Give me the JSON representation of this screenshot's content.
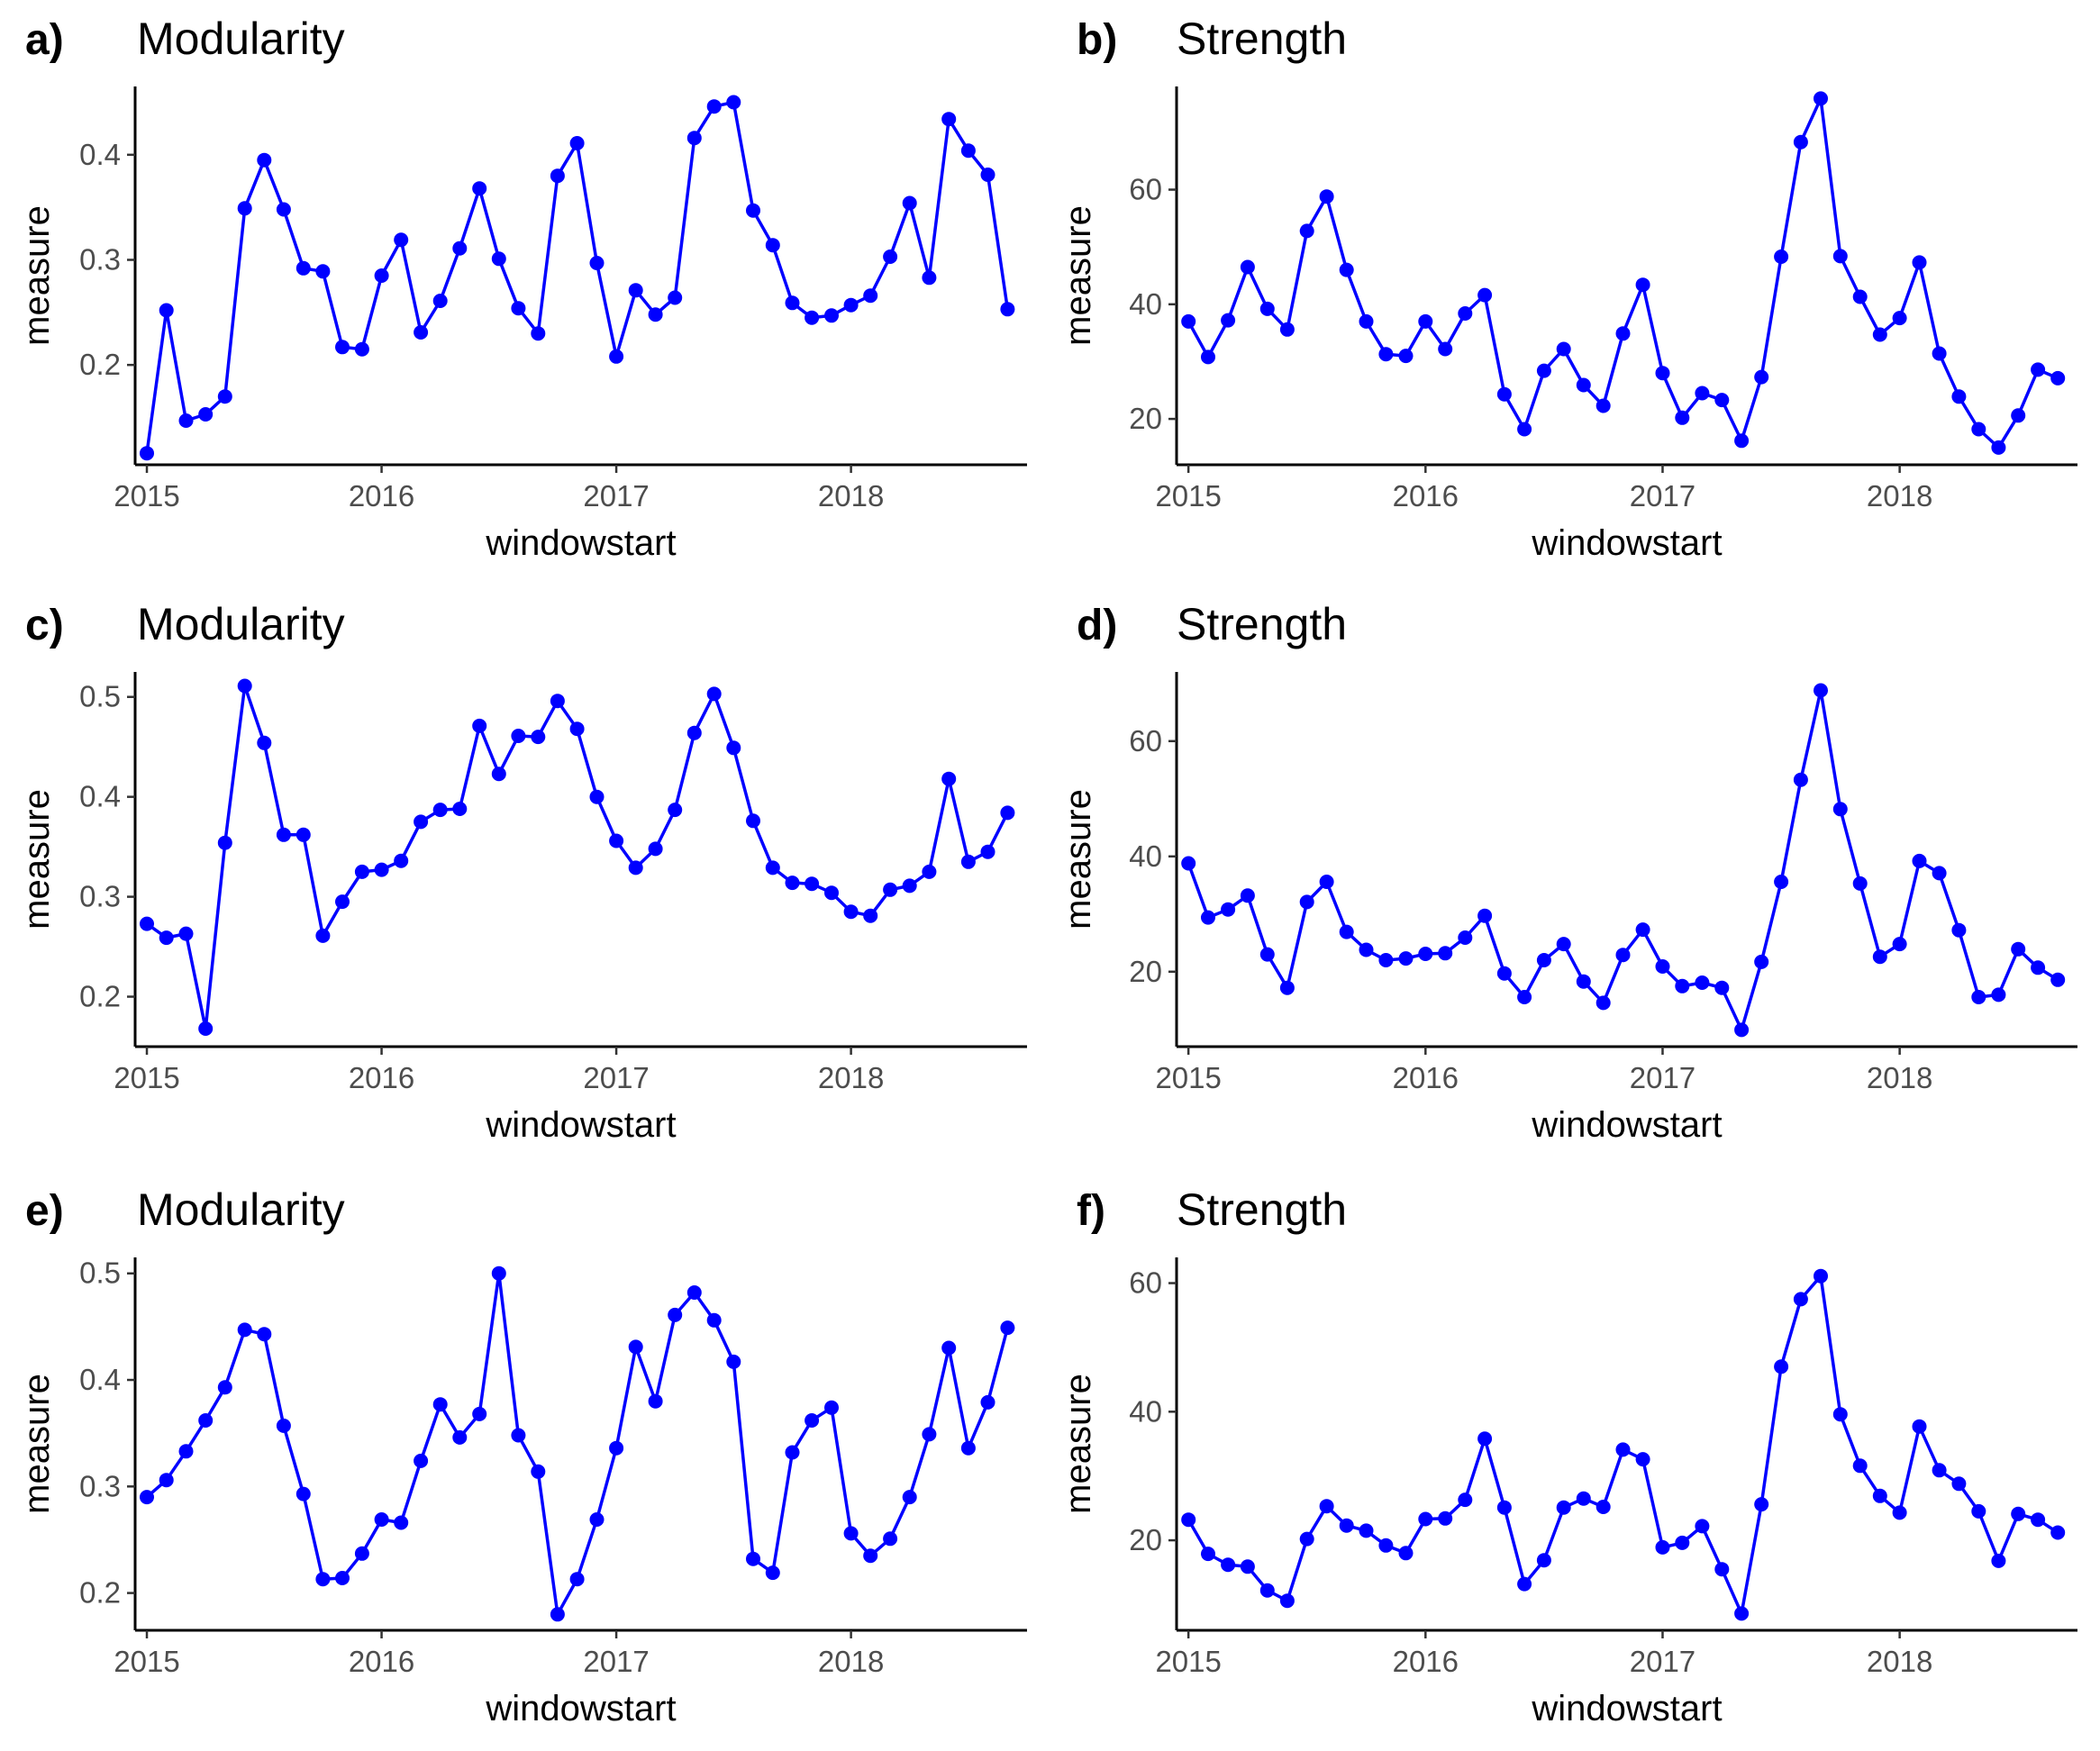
{
  "colors": {
    "series": "#0000ff",
    "axis": "#000000",
    "tick_label": "#4d4d4d"
  },
  "chart_data": [
    {
      "type": "line",
      "panel_label": "a)",
      "title": "Modularity",
      "xlabel": "windowstart",
      "ylabel": "measure",
      "x_ticks": [
        2015,
        2016,
        2017,
        2018
      ],
      "y_ticks": [
        0.2,
        0.3,
        0.4
      ],
      "xlim": [
        2014.95,
        2018.75
      ],
      "ylim": [
        0.105,
        0.465
      ],
      "grid": false,
      "series": [
        {
          "x": [
            2015.0,
            2015.083,
            2015.167,
            2015.25,
            2015.333,
            2015.417,
            2015.5,
            2015.583,
            2015.667,
            2015.75,
            2015.833,
            2015.917,
            2016.0,
            2016.083,
            2016.167,
            2016.25,
            2016.333,
            2016.417,
            2016.5,
            2016.583,
            2016.667,
            2016.75,
            2016.833,
            2016.917,
            2017.0,
            2017.083,
            2017.167,
            2017.25,
            2017.333,
            2017.417,
            2017.5,
            2017.583,
            2017.667,
            2017.75,
            2017.833,
            2017.917,
            2018.0,
            2018.083,
            2018.167,
            2018.25,
            2018.333,
            2018.417,
            2018.5,
            2018.583,
            2018.667
          ],
          "values": [
            0.116,
            0.252,
            0.147,
            0.153,
            0.17,
            0.349,
            0.395,
            0.348,
            0.292,
            0.289,
            0.217,
            0.215,
            0.285,
            0.319,
            0.231,
            0.261,
            0.311,
            0.368,
            0.301,
            0.254,
            0.23,
            0.38,
            0.411,
            0.297,
            0.208,
            0.271,
            0.248,
            0.264,
            0.416,
            0.446,
            0.45,
            0.347,
            0.314,
            0.259,
            0.245,
            0.247,
            0.257,
            0.266,
            0.303,
            0.354,
            0.283,
            0.434,
            0.404,
            0.381,
            0.253
          ]
        }
      ]
    },
    {
      "type": "line",
      "panel_label": "b)",
      "title": "Strength",
      "xlabel": "windowstart",
      "ylabel": "measure",
      "x_ticks": [
        2015,
        2016,
        2017,
        2018
      ],
      "y_ticks": [
        20,
        40,
        60
      ],
      "xlim": [
        2014.95,
        2018.75
      ],
      "ylim": [
        12,
        78
      ],
      "grid": false,
      "series": [
        {
          "x": [
            2015.0,
            2015.083,
            2015.167,
            2015.25,
            2015.333,
            2015.417,
            2015.5,
            2015.583,
            2015.667,
            2015.75,
            2015.833,
            2015.917,
            2016.0,
            2016.083,
            2016.167,
            2016.25,
            2016.333,
            2016.417,
            2016.5,
            2016.583,
            2016.667,
            2016.75,
            2016.833,
            2016.917,
            2017.0,
            2017.083,
            2017.167,
            2017.25,
            2017.333,
            2017.417,
            2017.5,
            2017.583,
            2017.667,
            2017.75,
            2017.833,
            2017.917,
            2018.0,
            2018.083,
            2018.167,
            2018.25,
            2018.333,
            2018.417,
            2018.5,
            2018.583,
            2018.667
          ],
          "values": [
            37.0,
            30.8,
            37.2,
            46.5,
            39.2,
            35.6,
            52.8,
            58.8,
            46.0,
            37.0,
            31.3,
            31.0,
            37.0,
            32.2,
            38.4,
            41.6,
            24.3,
            18.2,
            28.4,
            32.2,
            25.9,
            22.3,
            34.9,
            43.4,
            28.0,
            20.2,
            24.5,
            23.3,
            16.2,
            27.3,
            48.3,
            68.3,
            75.9,
            48.4,
            41.3,
            34.7,
            37.6,
            47.3,
            31.4,
            23.9,
            18.2,
            15.0,
            20.6,
            28.6,
            27.1
          ]
        }
      ]
    },
    {
      "type": "line",
      "panel_label": "c)",
      "title": "Modularity",
      "xlabel": "windowstart",
      "ylabel": "measure",
      "x_ticks": [
        2015,
        2016,
        2017,
        2018
      ],
      "y_ticks": [
        0.2,
        0.3,
        0.4,
        0.5
      ],
      "xlim": [
        2014.95,
        2018.75
      ],
      "ylim": [
        0.15,
        0.525
      ],
      "grid": false,
      "series": [
        {
          "x": [
            2015.0,
            2015.083,
            2015.167,
            2015.25,
            2015.333,
            2015.417,
            2015.5,
            2015.583,
            2015.667,
            2015.75,
            2015.833,
            2015.917,
            2016.0,
            2016.083,
            2016.167,
            2016.25,
            2016.333,
            2016.417,
            2016.5,
            2016.583,
            2016.667,
            2016.75,
            2016.833,
            2016.917,
            2017.0,
            2017.083,
            2017.167,
            2017.25,
            2017.333,
            2017.417,
            2017.5,
            2017.583,
            2017.667,
            2017.75,
            2017.833,
            2017.917,
            2018.0,
            2018.083,
            2018.167,
            2018.25,
            2018.333,
            2018.417,
            2018.5,
            2018.583,
            2018.667
          ],
          "values": [
            0.273,
            0.259,
            0.263,
            0.168,
            0.354,
            0.511,
            0.454,
            0.362,
            0.362,
            0.261,
            0.295,
            0.325,
            0.327,
            0.336,
            0.375,
            0.387,
            0.388,
            0.471,
            0.423,
            0.461,
            0.46,
            0.496,
            0.468,
            0.4,
            0.356,
            0.329,
            0.348,
            0.387,
            0.464,
            0.503,
            0.449,
            0.376,
            0.329,
            0.314,
            0.313,
            0.304,
            0.285,
            0.281,
            0.307,
            0.311,
            0.325,
            0.418,
            0.335,
            0.345,
            0.384
          ]
        }
      ]
    },
    {
      "type": "line",
      "panel_label": "d)",
      "title": "Strength",
      "xlabel": "windowstart",
      "ylabel": "measure",
      "x_ticks": [
        2015,
        2016,
        2017,
        2018
      ],
      "y_ticks": [
        20,
        40,
        60
      ],
      "xlim": [
        2014.95,
        2018.75
      ],
      "ylim": [
        7,
        72
      ],
      "grid": false,
      "series": [
        {
          "x": [
            2015.0,
            2015.083,
            2015.167,
            2015.25,
            2015.333,
            2015.417,
            2015.5,
            2015.583,
            2015.667,
            2015.75,
            2015.833,
            2015.917,
            2016.0,
            2016.083,
            2016.167,
            2016.25,
            2016.333,
            2016.417,
            2016.5,
            2016.583,
            2016.667,
            2016.75,
            2016.833,
            2016.917,
            2017.0,
            2017.083,
            2017.167,
            2017.25,
            2017.333,
            2017.417,
            2017.5,
            2017.583,
            2017.667,
            2017.75,
            2017.833,
            2017.917,
            2018.0,
            2018.083,
            2018.167,
            2018.25,
            2018.333,
            2018.417,
            2018.5,
            2018.583,
            2018.667
          ],
          "values": [
            38.8,
            29.4,
            30.8,
            33.2,
            23.0,
            17.2,
            32.1,
            35.6,
            26.9,
            23.8,
            22.0,
            22.3,
            23.1,
            23.2,
            25.9,
            29.7,
            19.7,
            15.6,
            22.0,
            24.8,
            18.3,
            14.6,
            22.9,
            27.3,
            20.9,
            17.5,
            18.1,
            17.2,
            9.9,
            21.7,
            35.6,
            53.3,
            68.8,
            48.2,
            35.3,
            22.6,
            24.8,
            39.2,
            37.1,
            27.2,
            15.6,
            16.0,
            23.9,
            20.7,
            18.6
          ]
        }
      ]
    },
    {
      "type": "line",
      "panel_label": "e)",
      "title": "Modularity",
      "xlabel": "windowstart",
      "ylabel": "measure",
      "x_ticks": [
        2015,
        2016,
        2017,
        2018
      ],
      "y_ticks": [
        0.2,
        0.3,
        0.4,
        0.5
      ],
      "xlim": [
        2014.95,
        2018.75
      ],
      "ylim": [
        0.165,
        0.515
      ],
      "grid": false,
      "series": [
        {
          "x": [
            2015.0,
            2015.083,
            2015.167,
            2015.25,
            2015.333,
            2015.417,
            2015.5,
            2015.583,
            2015.667,
            2015.75,
            2015.833,
            2015.917,
            2016.0,
            2016.083,
            2016.167,
            2016.25,
            2016.333,
            2016.417,
            2016.5,
            2016.583,
            2016.667,
            2016.75,
            2016.833,
            2016.917,
            2017.0,
            2017.083,
            2017.167,
            2017.25,
            2017.333,
            2017.417,
            2017.5,
            2017.583,
            2017.667,
            2017.75,
            2017.833,
            2017.917,
            2018.0,
            2018.083,
            2018.167,
            2018.25,
            2018.333,
            2018.417,
            2018.5,
            2018.583,
            2018.667
          ],
          "values": [
            0.29,
            0.306,
            0.333,
            0.362,
            0.393,
            0.447,
            0.443,
            0.357,
            0.293,
            0.213,
            0.214,
            0.237,
            0.269,
            0.266,
            0.324,
            0.377,
            0.346,
            0.368,
            0.5,
            0.348,
            0.314,
            0.18,
            0.213,
            0.269,
            0.336,
            0.431,
            0.38,
            0.461,
            0.482,
            0.456,
            0.417,
            0.232,
            0.219,
            0.332,
            0.362,
            0.374,
            0.256,
            0.235,
            0.251,
            0.29,
            0.349,
            0.43,
            0.336,
            0.379,
            0.449
          ]
        }
      ]
    },
    {
      "type": "line",
      "panel_label": "f)",
      "title": "Strength",
      "xlabel": "windowstart",
      "ylabel": "measure",
      "x_ticks": [
        2015,
        2016,
        2017,
        2018
      ],
      "y_ticks": [
        20,
        40,
        60
      ],
      "xlim": [
        2014.95,
        2018.75
      ],
      "ylim": [
        6,
        64
      ],
      "grid": false,
      "series": [
        {
          "x": [
            2015.0,
            2015.083,
            2015.167,
            2015.25,
            2015.333,
            2015.417,
            2015.5,
            2015.583,
            2015.667,
            2015.75,
            2015.833,
            2015.917,
            2016.0,
            2016.083,
            2016.167,
            2016.25,
            2016.333,
            2016.417,
            2016.5,
            2016.583,
            2016.667,
            2016.75,
            2016.833,
            2016.917,
            2017.0,
            2017.083,
            2017.167,
            2017.25,
            2017.333,
            2017.417,
            2017.5,
            2017.583,
            2017.667,
            2017.75,
            2017.833,
            2017.917,
            2018.0,
            2018.083,
            2018.167,
            2018.25,
            2018.333,
            2018.417,
            2018.5,
            2018.583,
            2018.667
          ],
          "values": [
            23.2,
            17.9,
            16.2,
            15.9,
            12.2,
            10.6,
            20.2,
            25.3,
            22.3,
            21.5,
            19.2,
            18.0,
            23.3,
            23.4,
            26.3,
            35.8,
            25.1,
            13.2,
            16.9,
            25.1,
            26.5,
            25.2,
            34.1,
            32.6,
            18.9,
            19.6,
            22.2,
            15.5,
            8.6,
            25.6,
            47.0,
            57.5,
            61.1,
            39.6,
            31.6,
            26.9,
            24.3,
            37.7,
            30.9,
            28.8,
            24.5,
            16.8,
            24.1,
            23.2,
            21.2
          ]
        }
      ]
    }
  ]
}
